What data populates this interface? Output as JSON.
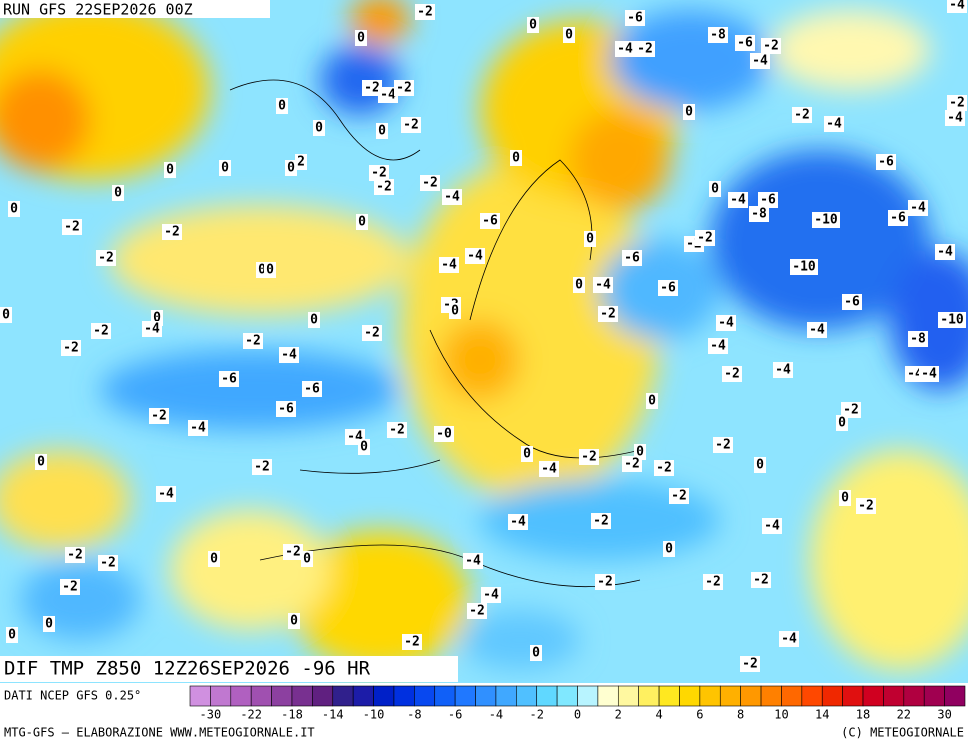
{
  "header": {
    "run": "RUN GFS 22SEP2026 00Z"
  },
  "map": {
    "title": "DIF TMP Z850 12Z26SEP2026 -96 HR",
    "labels": [
      "-2",
      "0",
      "0",
      "-6",
      "-8",
      "-6",
      "-2",
      "-4",
      "-2",
      "-4",
      "-4",
      "0",
      "-2",
      "-4",
      "-2",
      "0",
      "0",
      "0",
      "-2",
      "0",
      "-2",
      "-4",
      "-2",
      "-4",
      "0",
      "0",
      "0",
      "2",
      "-2",
      "-2",
      "-2",
      "-4",
      "0",
      "-6",
      "0",
      "0",
      "0",
      "-6",
      "0",
      "-4",
      "-6",
      "-8",
      "-10",
      "-6",
      "-4",
      "-2",
      "-2",
      "0",
      "-2",
      "-2",
      "-2",
      "0",
      "0",
      "-4",
      "-4",
      "-6",
      "-10",
      "-4",
      "0",
      "-4",
      "-6",
      "-2",
      "0",
      "0",
      "0",
      "0",
      "-4",
      "-2",
      "-2",
      "-2",
      "-4",
      "-6",
      "-4",
      "-10",
      "-2",
      "-2",
      "-4",
      "-4",
      "-8",
      "-6",
      "-6",
      "-2",
      "-4",
      "-4",
      "-4",
      "-6",
      "-2",
      "-4",
      "0",
      "-2",
      "0",
      "-4",
      "0",
      "-2",
      "-0",
      "0",
      "-2",
      "0",
      "-4",
      "-2",
      "0",
      "-2",
      "-2",
      "-2",
      "0",
      "-4",
      "-2",
      "0",
      "-2",
      "-4",
      "-2",
      "-4",
      "0",
      "-2",
      "-2",
      "0",
      "-2",
      "0",
      "-4",
      "-2",
      "-2",
      "-2",
      "-2",
      "-4",
      "-2",
      "0",
      "0",
      "0",
      "-2",
      "-4",
      "0",
      "-2"
    ]
  },
  "legend": {
    "colors": [
      "#d090e0",
      "#c078d0",
      "#b060c0",
      "#a050b0",
      "#8c40a0",
      "#783090",
      "#602080",
      "#30208c",
      "#1c1ca8",
      "#0020c8",
      "#0030e0",
      "#0848f0",
      "#1060f8",
      "#2078ff",
      "#3090ff",
      "#40a8ff",
      "#50c0ff",
      "#60d8ff",
      "#80e8ff",
      "#b8f4ff",
      "#ffffd0",
      "#fff8a0",
      "#fff060",
      "#ffe820",
      "#ffd800",
      "#ffc400",
      "#ffb000",
      "#ff9800",
      "#ff8000",
      "#ff6800",
      "#ff4800",
      "#f02800",
      "#e01010",
      "#d00020",
      "#c00030",
      "#b00040",
      "#a00050",
      "#900060"
    ],
    "ticks": [
      -30,
      -22,
      -18,
      -14,
      -10,
      -8,
      -6,
      -4,
      -2,
      0,
      2,
      4,
      6,
      8,
      10,
      14,
      18,
      22,
      30
    ]
  },
  "footer": {
    "source": "DATI NCEP GFS 0.25°",
    "credit": "MTG-GFS — ELABORAZIONE WWW.METEOGIORNALE.IT",
    "copyright": "(C) METEOGIORNALE"
  }
}
